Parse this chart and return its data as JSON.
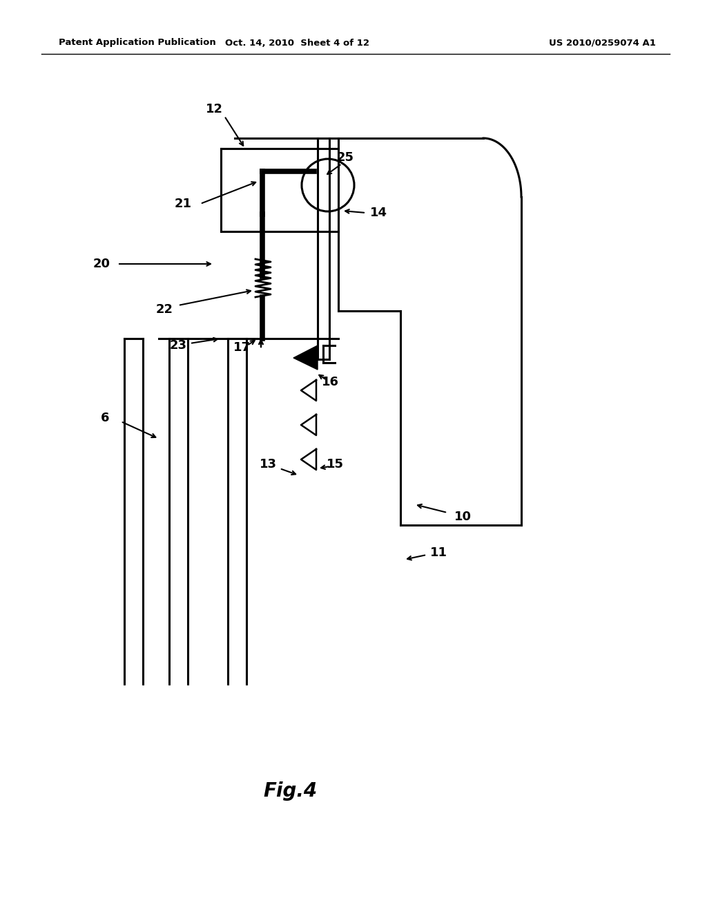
{
  "bg_color": "#ffffff",
  "header_left": "Patent Application Publication",
  "header_center": "Oct. 14, 2010  Sheet 4 of 12",
  "header_right": "US 2010/0259074 A1",
  "fig_label": "Fig.4"
}
